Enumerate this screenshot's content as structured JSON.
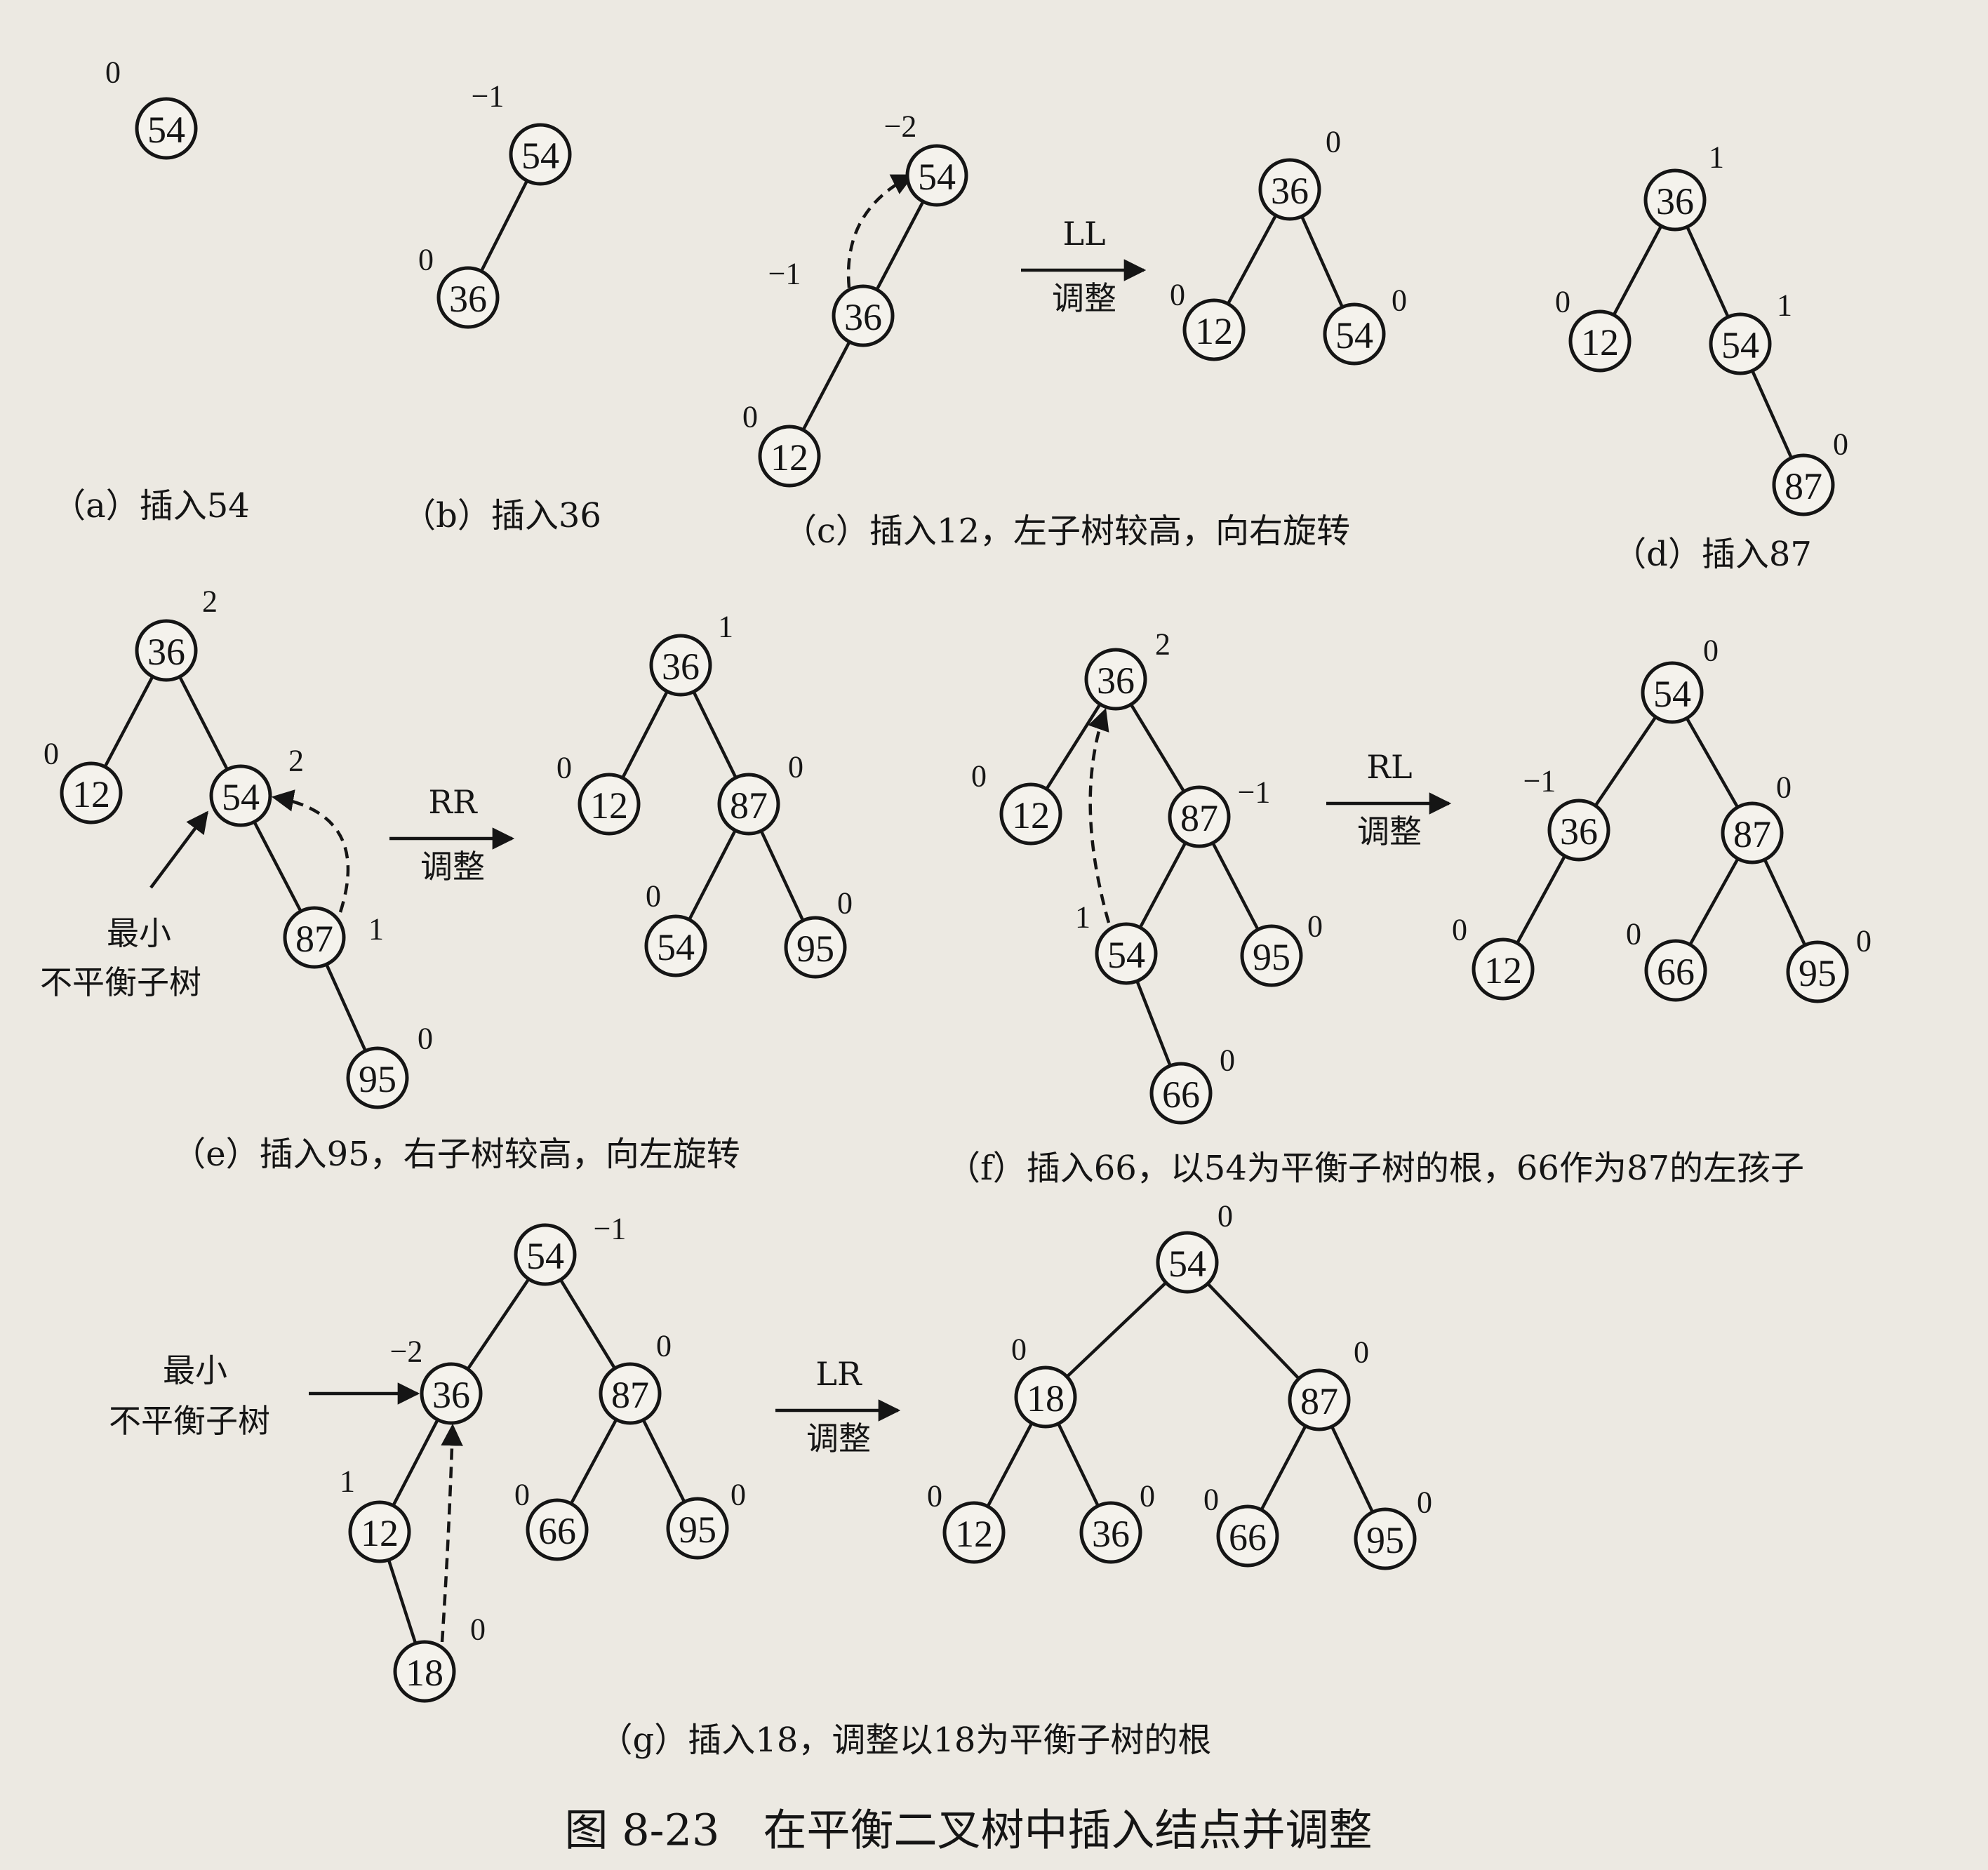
{
  "figure_title": "图 8-23　在平衡二叉树中插入结点并调整",
  "panels": [
    {
      "id": "a",
      "caption": "（a）插入54",
      "nodes": [
        {
          "key": "54",
          "bf": "0"
        }
      ],
      "edges": []
    },
    {
      "id": "b",
      "caption": "（b）插入36",
      "nodes": [
        {
          "key": "54",
          "bf": "−1"
        },
        {
          "key": "36",
          "bf": "0"
        }
      ],
      "edges": [
        [
          "54",
          "36"
        ]
      ]
    },
    {
      "id": "c",
      "caption": "（c）插入12，左子树较高，向右旋转",
      "nodes": [
        {
          "key": "54",
          "bf": "−2"
        },
        {
          "key": "36",
          "bf": "−1"
        },
        {
          "key": "12",
          "bf": "0"
        }
      ],
      "edges": [
        [
          "54",
          "36"
        ],
        [
          "36",
          "12"
        ]
      ],
      "operation": {
        "top": "LL",
        "bottom": "调整"
      },
      "result": {
        "nodes": [
          {
            "key": "36",
            "bf": "0"
          },
          {
            "key": "12",
            "bf": "0"
          },
          {
            "key": "54",
            "bf": "0"
          }
        ],
        "edges": [
          [
            "36",
            "12"
          ],
          [
            "36",
            "54"
          ]
        ]
      }
    },
    {
      "id": "d",
      "caption": "（d）插入87",
      "nodes": [
        {
          "key": "36",
          "bf": "1"
        },
        {
          "key": "12",
          "bf": "0"
        },
        {
          "key": "54",
          "bf": "1"
        },
        {
          "key": "87",
          "bf": "0"
        }
      ],
      "edges": [
        [
          "36",
          "12"
        ],
        [
          "36",
          "54"
        ],
        [
          "54",
          "87"
        ]
      ]
    },
    {
      "id": "e",
      "caption": "（e）插入95，右子树较高，向左旋转",
      "nodes": [
        {
          "key": "36",
          "bf": "2"
        },
        {
          "key": "12",
          "bf": "0"
        },
        {
          "key": "54",
          "bf": "2"
        },
        {
          "key": "87",
          "bf": "1"
        },
        {
          "key": "95",
          "bf": "0"
        }
      ],
      "edges": [
        [
          "36",
          "12"
        ],
        [
          "36",
          "54"
        ],
        [
          "54",
          "87"
        ],
        [
          "87",
          "95"
        ]
      ],
      "annotation": [
        "最小",
        "不平衡子树"
      ],
      "operation": {
        "top": "RR",
        "bottom": "调整"
      },
      "result": {
        "nodes": [
          {
            "key": "36",
            "bf": "1"
          },
          {
            "key": "12",
            "bf": "0"
          },
          {
            "key": "87",
            "bf": "0"
          },
          {
            "key": "54",
            "bf": "0"
          },
          {
            "key": "95",
            "bf": "0"
          }
        ],
        "edges": [
          [
            "36",
            "12"
          ],
          [
            "36",
            "87"
          ],
          [
            "87",
            "54"
          ],
          [
            "87",
            "95"
          ]
        ]
      }
    },
    {
      "id": "f",
      "caption": "（f）插入66，以54为平衡子树的根，66作为87的左孩子",
      "nodes": [
        {
          "key": "36",
          "bf": "2"
        },
        {
          "key": "12",
          "bf": "0"
        },
        {
          "key": "87",
          "bf": "−1"
        },
        {
          "key": "54",
          "bf": "1"
        },
        {
          "key": "95",
          "bf": "0"
        },
        {
          "key": "66",
          "bf": "0"
        }
      ],
      "edges": [
        [
          "36",
          "12"
        ],
        [
          "36",
          "87"
        ],
        [
          "87",
          "54"
        ],
        [
          "87",
          "95"
        ],
        [
          "54",
          "66"
        ]
      ],
      "operation": {
        "top": "RL",
        "bottom": "调整"
      },
      "result": {
        "nodes": [
          {
            "key": "54",
            "bf": "0"
          },
          {
            "key": "36",
            "bf": "−1"
          },
          {
            "key": "87",
            "bf": "0"
          },
          {
            "key": "12",
            "bf": "0"
          },
          {
            "key": "66",
            "bf": "0"
          },
          {
            "key": "95",
            "bf": "0"
          }
        ],
        "edges": [
          [
            "54",
            "36"
          ],
          [
            "54",
            "87"
          ],
          [
            "36",
            "12"
          ],
          [
            "87",
            "66"
          ],
          [
            "87",
            "95"
          ]
        ]
      }
    },
    {
      "id": "g",
      "caption": "（g）插入18，调整以18为平衡子树的根",
      "nodes": [
        {
          "key": "54",
          "bf": "−1"
        },
        {
          "key": "36",
          "bf": "−2"
        },
        {
          "key": "87",
          "bf": "0"
        },
        {
          "key": "12",
          "bf": "1"
        },
        {
          "key": "66",
          "bf": "0"
        },
        {
          "key": "95",
          "bf": "0"
        },
        {
          "key": "18",
          "bf": "0"
        }
      ],
      "edges": [
        [
          "54",
          "36"
        ],
        [
          "54",
          "87"
        ],
        [
          "36",
          "12"
        ],
        [
          "87",
          "66"
        ],
        [
          "87",
          "95"
        ],
        [
          "12",
          "18"
        ]
      ],
      "annotation": [
        "最小",
        "不平衡子树"
      ],
      "operation": {
        "top": "LR",
        "bottom": "调整"
      },
      "result": {
        "nodes": [
          {
            "key": "54",
            "bf": "0"
          },
          {
            "key": "18",
            "bf": "0"
          },
          {
            "key": "87",
            "bf": "0"
          },
          {
            "key": "12",
            "bf": "0"
          },
          {
            "key": "36",
            "bf": "0"
          },
          {
            "key": "66",
            "bf": "0"
          },
          {
            "key": "95",
            "bf": "0"
          }
        ],
        "edges": [
          [
            "54",
            "18"
          ],
          [
            "54",
            "87"
          ],
          [
            "18",
            "12"
          ],
          [
            "18",
            "36"
          ],
          [
            "87",
            "66"
          ],
          [
            "87",
            "95"
          ]
        ]
      }
    }
  ]
}
